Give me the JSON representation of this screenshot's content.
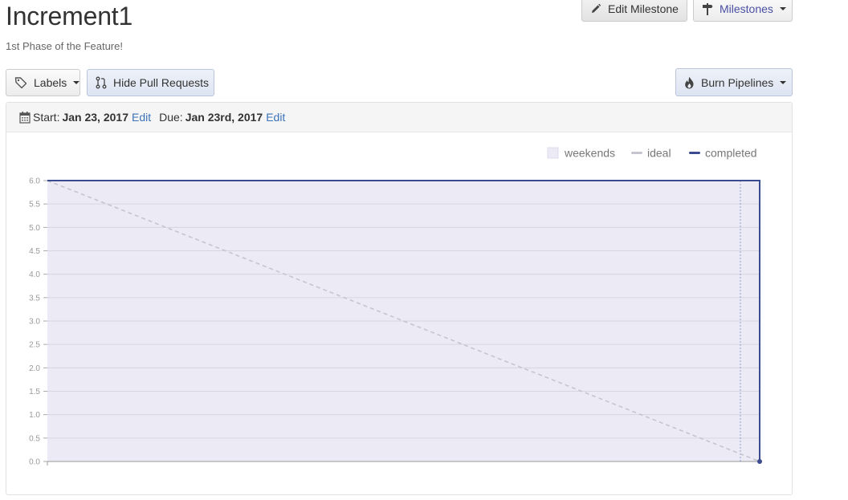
{
  "header": {
    "title": "Increment1",
    "subtitle": "1st Phase of the Feature!"
  },
  "toolbar": {
    "edit_milestone": "Edit Milestone",
    "milestones": "Milestones",
    "labels": "Labels",
    "hide_pull_requests": "Hide Pull Requests",
    "burn_pipelines": "Burn Pipelines"
  },
  "dates": {
    "start_label": "Start:",
    "start_value": "Jan 23, 2017",
    "start_edit": "Edit",
    "due_label": "Due:",
    "due_value": "Jan 23rd, 2017",
    "due_edit": "Edit"
  },
  "colors": {
    "completed": "#3a4b8f",
    "ideal": "#c5c5d0",
    "weekends": "#ebeaf5",
    "grid": "#d6d6e0",
    "link": "#3b73b9"
  },
  "chart_data": {
    "type": "line",
    "title": "",
    "legend": [
      "weekends",
      "ideal",
      "completed"
    ],
    "legend_position": "top-right",
    "ylim": [
      0,
      6
    ],
    "yticks": [
      "0.0",
      "0.5",
      "1.0",
      "1.5",
      "2.0",
      "2.5",
      "3.0",
      "3.5",
      "4.0",
      "4.5",
      "5.0",
      "5.5",
      "6.0"
    ],
    "series": [
      {
        "name": "ideal",
        "style": "dashed",
        "points": [
          [
            0,
            6.0
          ],
          [
            1,
            0.0
          ]
        ]
      },
      {
        "name": "completed",
        "style": "solid",
        "points": [
          [
            0,
            6.0
          ],
          [
            1,
            6.0
          ],
          [
            1,
            0.0
          ]
        ]
      }
    ],
    "weekend_band": [
      0,
      1
    ]
  }
}
